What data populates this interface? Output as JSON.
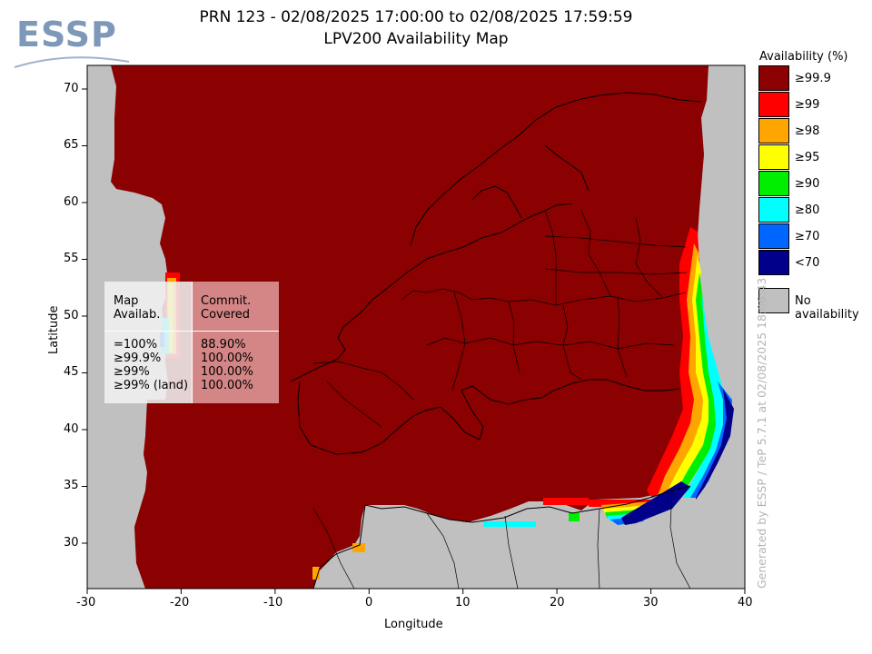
{
  "logo": {
    "text": "ESSP"
  },
  "title": {
    "line1": "PRN 123 - 02/08/2025 17:00:00 to 02/08/2025 17:59:59",
    "line2": "LPV200 Availability Map"
  },
  "axes": {
    "xlabel": "Longitude",
    "ylabel": "Latitude",
    "xticks": [
      "-30",
      "-20",
      "-10",
      "0",
      "10",
      "20",
      "30",
      "40"
    ],
    "yticks": [
      "70",
      "65",
      "60",
      "55",
      "50",
      "45",
      "40",
      "35",
      "30"
    ],
    "xlim": [
      -30,
      40
    ],
    "ylim": [
      26,
      72.1
    ]
  },
  "stats_table": {
    "header_left": "Map\nAvailab.",
    "header_right": "Commit.\nCovered",
    "rows_left": "=100%\n≥99.9%\n≥99%\n≥99% (land)",
    "rows_right": "88.90%\n100.00%\n100.00%\n100.00%"
  },
  "legend": {
    "title": "Availability (%)",
    "items": [
      {
        "label": "≥99.9",
        "color": "#8b0000"
      },
      {
        "label": "≥99",
        "color": "#ff0000"
      },
      {
        "label": "≥98",
        "color": "#ffa500"
      },
      {
        "label": "≥95",
        "color": "#ffff00"
      },
      {
        "label": "≥90",
        "color": "#00ee00"
      },
      {
        "label": "≥80",
        "color": "#00ffff"
      },
      {
        "label": "≥70",
        "color": "#0066ff"
      },
      {
        "label": "<70",
        "color": "#00008b"
      }
    ],
    "no_availability": {
      "label": "No availability",
      "color": "#c0c0c0"
    }
  },
  "watermark": "Generated by ESSP / TeP 5.7.1 at 02/08/2025 18:06:43"
}
